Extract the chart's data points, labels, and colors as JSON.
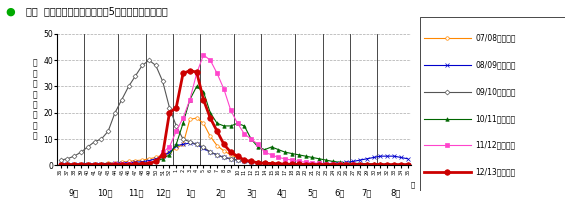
{
  "title": "全国  週別患者発生状況（過去5シーズンとの比較）",
  "title_dot_color": "#00aa00",
  "ylabel": "定\n点\n当\nた\nり\n報\n告\n数",
  "ylim": [
    0,
    50
  ],
  "yticks": [
    0,
    10,
    20,
    30,
    40,
    50
  ],
  "month_labels": [
    "9月",
    "10月",
    "11月",
    "12月",
    "1月",
    "2月",
    "3月",
    "4月",
    "5月",
    "6月",
    "7月",
    "8月"
  ],
  "background_color": "#ffffff",
  "grid_color": "#aaaaaa",
  "seasons": {
    "07/08シーズン": {
      "color": "#ff8800",
      "marker": "o",
      "marker_face": "white",
      "linewidth": 0.8,
      "markersize": 2.5,
      "data": [
        0.5,
        0.5,
        0.5,
        0.5,
        0.5,
        0.5,
        0.7,
        0.8,
        1.0,
        1.2,
        1.5,
        1.8,
        2.0,
        2.5,
        3.0,
        4.0,
        5.0,
        6.5,
        8.0,
        17.5,
        18.0,
        16.0,
        11.0,
        7.5,
        5.5,
        4.0,
        3.0,
        2.0,
        1.5,
        1.2,
        1.0,
        0.8,
        0.7,
        0.6,
        0.5,
        0.4,
        0.4,
        0.3,
        0.3,
        0.3,
        0.3,
        0.3,
        0.3,
        0.3,
        0.3,
        0.3,
        0.3,
        0.3,
        0.3,
        0.3,
        0.3,
        0.3
      ]
    },
    "08/09シーズン": {
      "color": "#0000cc",
      "marker": "x",
      "marker_face": "#0000cc",
      "linewidth": 0.8,
      "markersize": 2.5,
      "data": [
        0.4,
        0.4,
        0.4,
        0.5,
        0.5,
        0.5,
        0.6,
        0.7,
        0.8,
        1.0,
        1.0,
        1.2,
        1.4,
        1.8,
        2.5,
        3.5,
        5.0,
        7.5,
        8.0,
        8.5,
        8.0,
        6.5,
        5.0,
        4.0,
        3.0,
        2.5,
        2.0,
        1.5,
        1.2,
        1.0,
        0.8,
        0.7,
        0.6,
        0.5,
        0.5,
        0.4,
        0.4,
        0.5,
        0.5,
        0.6,
        0.8,
        1.0,
        1.2,
        1.5,
        2.0,
        2.5,
        3.0,
        3.5,
        3.5,
        3.5,
        3.0,
        2.5
      ]
    },
    "09/10シーズン": {
      "color": "#555555",
      "marker": "D",
      "marker_face": "white",
      "linewidth": 0.8,
      "markersize": 2.5,
      "data": [
        2.0,
        2.5,
        3.5,
        5.0,
        7.0,
        9.0,
        10.0,
        13.0,
        20.0,
        25.0,
        30.0,
        34.0,
        38.0,
        40.0,
        38.0,
        32.0,
        22.0,
        15.0,
        10.0,
        9.0,
        8.0,
        7.0,
        5.0,
        4.0,
        3.0,
        2.5,
        2.0,
        1.5,
        1.2,
        1.0,
        0.8,
        0.7,
        0.6,
        0.5,
        0.5,
        0.4,
        0.4,
        0.3,
        0.3,
        0.3,
        0.3,
        0.3,
        0.3,
        0.3,
        0.3,
        0.3,
        0.3,
        0.3,
        0.3,
        0.3,
        0.3,
        0.3
      ]
    },
    "10/11シーズン": {
      "color": "#006600",
      "marker": "^",
      "marker_face": "#006600",
      "linewidth": 0.8,
      "markersize": 2.5,
      "data": [
        0.3,
        0.3,
        0.3,
        0.3,
        0.3,
        0.3,
        0.4,
        0.4,
        0.5,
        0.5,
        0.6,
        0.7,
        0.8,
        1.0,
        1.5,
        2.5,
        4.0,
        8.0,
        16.0,
        25.0,
        30.0,
        28.0,
        20.0,
        16.0,
        15.0,
        15.0,
        16.0,
        15.0,
        10.0,
        7.0,
        6.0,
        7.0,
        6.0,
        5.0,
        4.5,
        4.0,
        3.5,
        3.0,
        2.5,
        2.0,
        1.5,
        1.2,
        1.0,
        0.8,
        0.7,
        0.6,
        0.5,
        0.4,
        0.3,
        0.3,
        0.3,
        0.3
      ]
    },
    "11/12シーズン": {
      "color": "#ff44cc",
      "marker": "s",
      "marker_face": "#ff44cc",
      "linewidth": 0.8,
      "markersize": 2.5,
      "data": [
        0.3,
        0.3,
        0.3,
        0.3,
        0.3,
        0.3,
        0.3,
        0.3,
        0.4,
        0.4,
        0.5,
        0.5,
        0.6,
        0.8,
        1.5,
        5.0,
        7.0,
        13.0,
        18.0,
        25.0,
        35.0,
        42.0,
        40.0,
        35.0,
        29.0,
        21.0,
        16.0,
        12.0,
        10.0,
        8.0,
        5.0,
        4.0,
        3.0,
        2.5,
        2.0,
        1.5,
        1.2,
        1.0,
        0.8,
        0.7,
        0.6,
        0.5,
        0.4,
        0.4,
        0.3,
        0.3,
        0.3,
        0.3,
        0.3,
        0.3,
        0.3,
        0.3
      ]
    },
    "12/13シーズン": {
      "color": "#cc0000",
      "marker": "o",
      "marker_face": "#cc0000",
      "linewidth": 2.0,
      "markersize": 4.0,
      "data": [
        0.3,
        0.3,
        0.3,
        0.3,
        0.3,
        0.3,
        0.3,
        0.3,
        0.3,
        0.3,
        0.3,
        0.4,
        0.5,
        0.7,
        1.5,
        4.0,
        20.0,
        22.0,
        35.0,
        36.0,
        35.5,
        25.0,
        18.0,
        13.0,
        8.0,
        5.0,
        3.5,
        2.0,
        1.5,
        1.0,
        0.8,
        0.7,
        0.6,
        0.5,
        0.4,
        0.4,
        0.3,
        0.3,
        0.3,
        0.3,
        0.3,
        0.3,
        0.3,
        0.3,
        0.3,
        0.3,
        0.3,
        0.3,
        0.3,
        0.3,
        0.3,
        0.3
      ]
    }
  },
  "week_labels": [
    "36",
    "37",
    "38",
    "39",
    "40",
    "41",
    "42",
    "43",
    "44",
    "45",
    "46",
    "47",
    "48",
    "49",
    "50",
    "51",
    "52",
    "1",
    "2",
    "3",
    "4",
    "5",
    "6",
    "7",
    "8",
    "9",
    "10",
    "11",
    "12",
    "13",
    "14",
    "15",
    "16",
    "17",
    "18",
    "19",
    "20",
    "21",
    "22",
    "23",
    "24",
    "25",
    "26",
    "27",
    "28",
    "29",
    "30",
    "31",
    "32",
    "33",
    "34",
    "35"
  ],
  "month_tick_positions": [
    0,
    4,
    9,
    13,
    17,
    21,
    26,
    30,
    35,
    39,
    43,
    47
  ],
  "legend_order": [
    "07/08シーズン",
    "08/09シーズン",
    "09/10シーズン",
    "10/11シーズン",
    "11/12シーズン",
    "12/13シーズン"
  ]
}
